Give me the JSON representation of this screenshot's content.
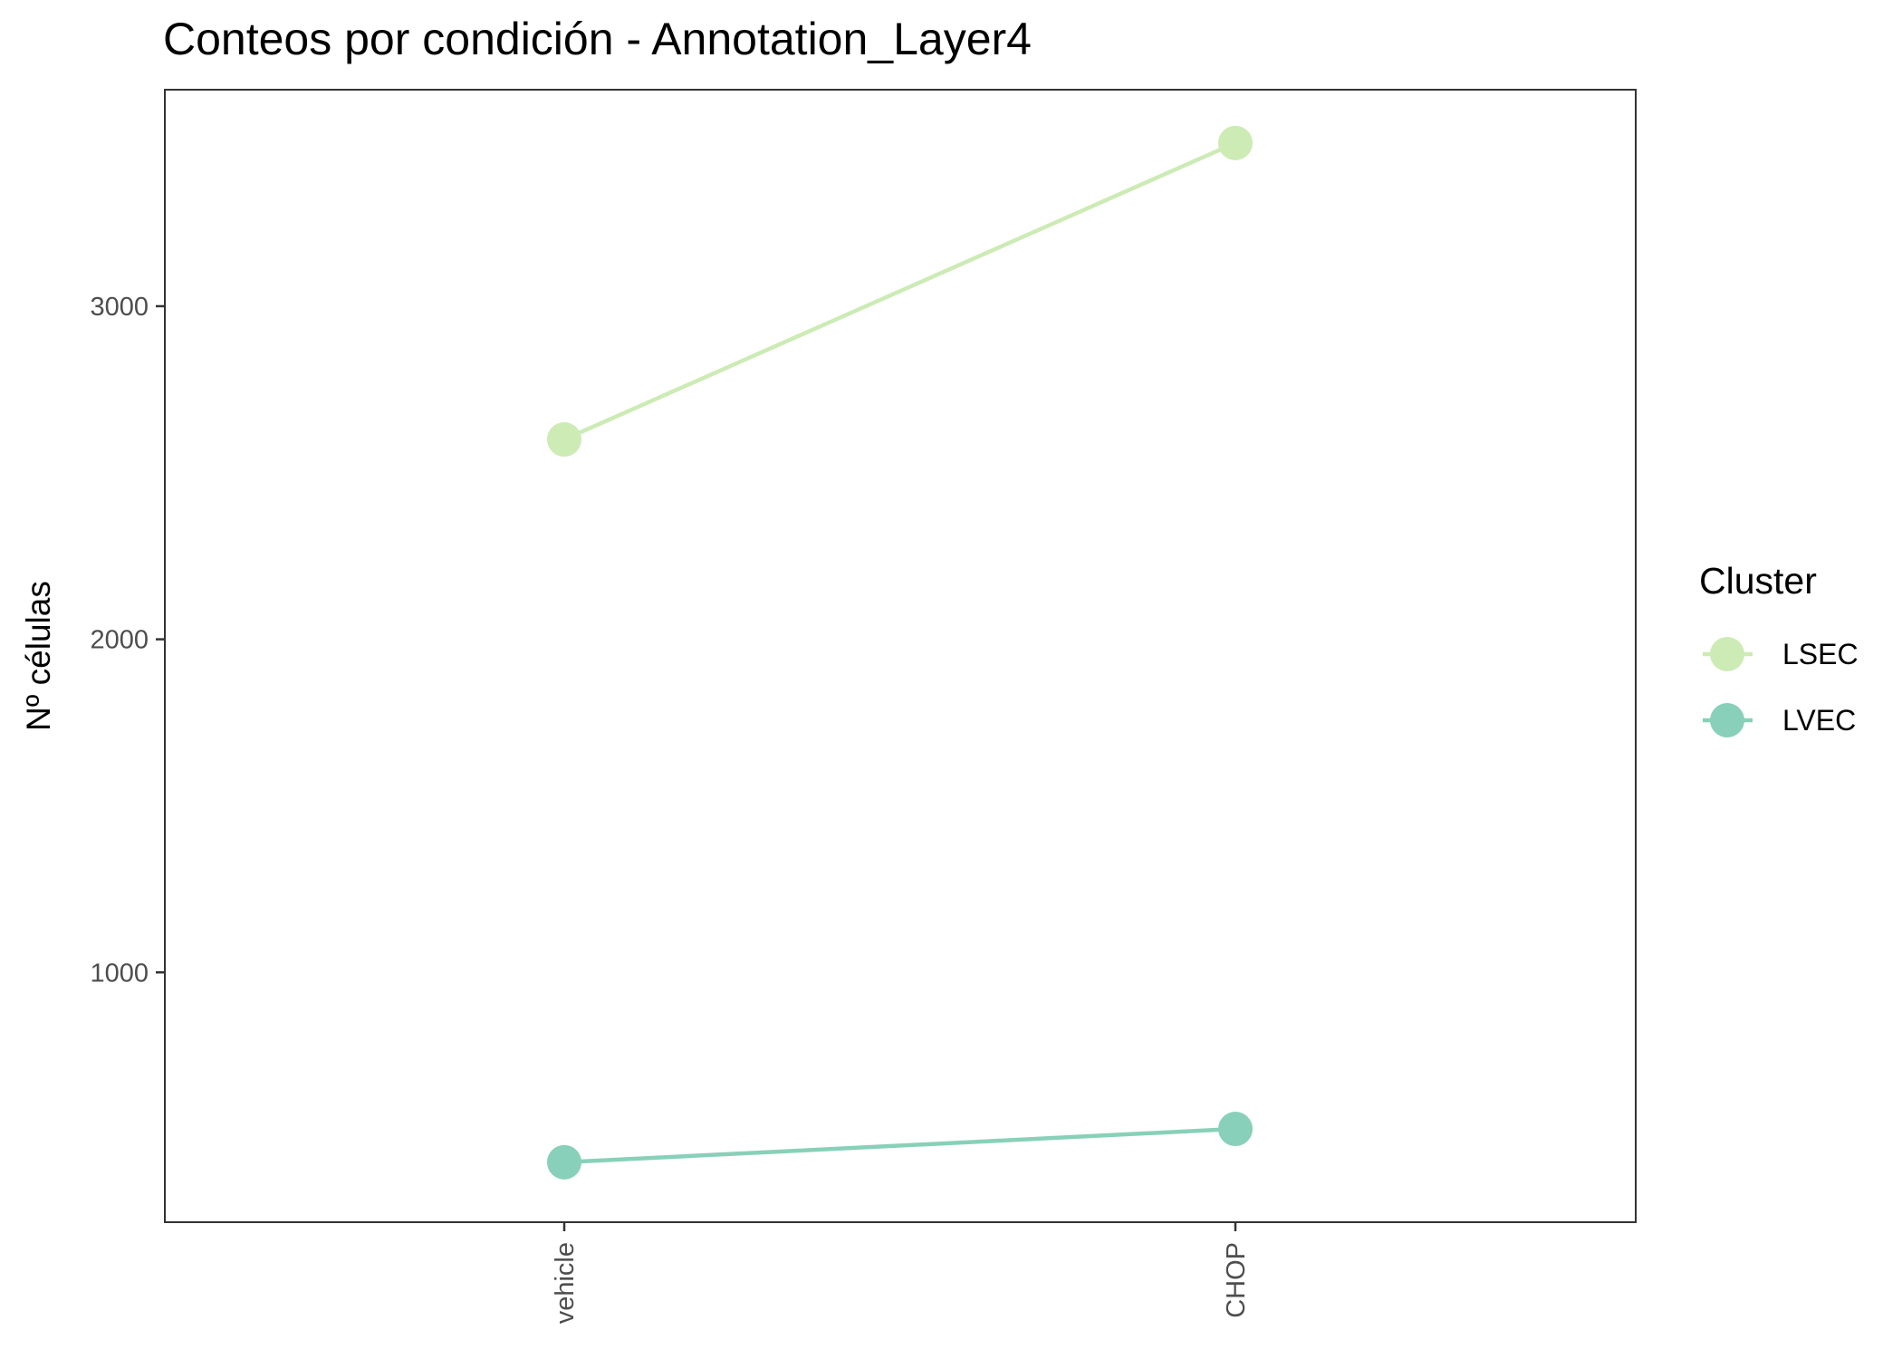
{
  "chart_data": {
    "type": "line",
    "title": "Conteos por condición - Annotation_Layer4",
    "xlabel": "",
    "ylabel": "Nº células",
    "categories": [
      "vehicle",
      "CHOP"
    ],
    "ylim": [
      250,
      3650
    ],
    "yticks": [
      1000,
      2000,
      3000
    ],
    "grid": false,
    "legend": {
      "title": "Cluster",
      "position": "right"
    },
    "series": [
      {
        "name": "LSEC",
        "values": [
          2600,
          3490
        ],
        "color": "#CCEBB5"
      },
      {
        "name": "LVEC",
        "values": [
          430,
          530
        ],
        "color": "#88D0B9"
      }
    ]
  }
}
